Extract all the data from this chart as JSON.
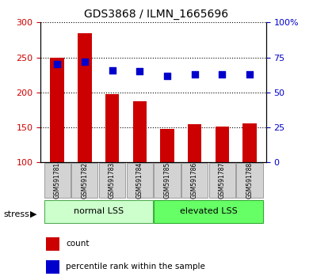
{
  "title": "GDS3868 / ILMN_1665696",
  "samples": [
    "GSM591781",
    "GSM591782",
    "GSM591783",
    "GSM591784",
    "GSM591785",
    "GSM591786",
    "GSM591787",
    "GSM591788"
  ],
  "bar_values": [
    250,
    285,
    198,
    187,
    148,
    155,
    151,
    156
  ],
  "percentile_values": [
    70,
    72,
    66,
    65,
    62,
    63,
    63,
    63
  ],
  "bar_color": "#cc0000",
  "marker_color": "#0000cc",
  "ylim_left": [
    100,
    300
  ],
  "ylim_right": [
    0,
    100
  ],
  "yticks_left": [
    100,
    150,
    200,
    250,
    300
  ],
  "yticks_right": [
    0,
    25,
    50,
    75,
    100
  ],
  "ytick_labels_right": [
    "0",
    "25",
    "50",
    "75",
    "100%"
  ],
  "group1_label": "normal LSS",
  "group2_label": "elevated LSS",
  "stress_label": "stress",
  "legend_count": "count",
  "legend_percentile": "percentile rank within the sample",
  "group1_color": "#ccffcc",
  "group2_color": "#66ff66",
  "tick_label_color_left": "#cc0000",
  "tick_label_color_right": "#0000cc",
  "plot_bg": "#ffffff"
}
